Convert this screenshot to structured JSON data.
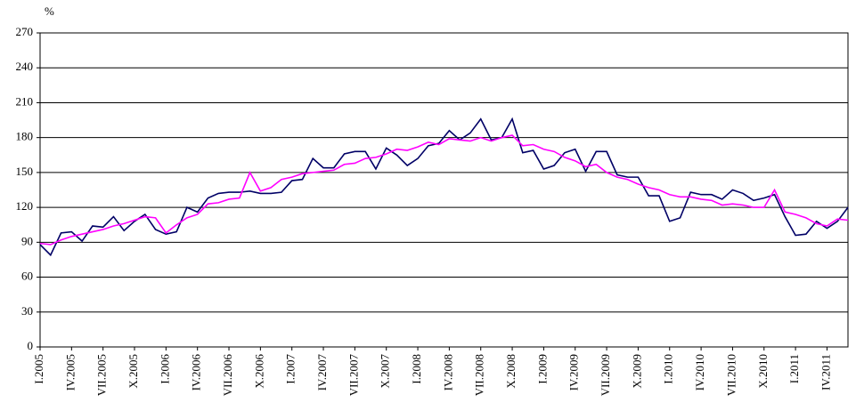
{
  "chart_data": {
    "type": "line",
    "ylabel": "%",
    "categories": [
      "I.2005",
      null,
      null,
      "IV.2005",
      null,
      null,
      "VII.2005",
      null,
      null,
      "X.2005",
      null,
      null,
      "I.2006",
      null,
      null,
      "IV.2006",
      null,
      null,
      "VII.2006",
      null,
      null,
      "X.2006",
      null,
      null,
      "I.2007",
      null,
      null,
      "IV.2007",
      null,
      null,
      "VII.2007",
      null,
      null,
      "X.2007",
      null,
      null,
      "I.2008",
      null,
      null,
      "IV.2008",
      null,
      null,
      "VII.2008",
      null,
      null,
      "X.2008",
      null,
      null,
      "I.2009",
      null,
      null,
      "IV.2009",
      null,
      null,
      "VII.2009",
      null,
      null,
      "X.2009",
      null,
      null,
      "I.2010",
      null,
      null,
      "IV.2010",
      null,
      null,
      "VII.2010",
      null,
      null,
      "X.2010",
      null,
      null,
      "I.2011",
      null,
      null,
      "IV.2011",
      null,
      null
    ],
    "series": [
      {
        "color": "#000066",
        "values": [
          88,
          79,
          98,
          99,
          91,
          104,
          103,
          112,
          100,
          108,
          114,
          101,
          97,
          99,
          120,
          116,
          128,
          132,
          133,
          133,
          134,
          132,
          132,
          133,
          143,
          144,
          162,
          154,
          154,
          166,
          168,
          168,
          153,
          171,
          165,
          156,
          162,
          173,
          175,
          186,
          178,
          184,
          196,
          178,
          180,
          196,
          167,
          169,
          153,
          156,
          167,
          170,
          151,
          168,
          168,
          148,
          146,
          146,
          130,
          130,
          108,
          111,
          133,
          131,
          131,
          127,
          135,
          132,
          126,
          128,
          131,
          112,
          96,
          97,
          108,
          102,
          108,
          120
        ]
      },
      {
        "color": "#ff00ff",
        "values": [
          89,
          88,
          92,
          95,
          97,
          99,
          101,
          104,
          106,
          109,
          112,
          111,
          98,
          105,
          111,
          114,
          123,
          124,
          127,
          128,
          150,
          134,
          137,
          144,
          146,
          149,
          150,
          151,
          152,
          157,
          158,
          162,
          163,
          166,
          170,
          169,
          172,
          176,
          174,
          179,
          178,
          177,
          180,
          177,
          180,
          182,
          173,
          174,
          170,
          168,
          163,
          160,
          155,
          157,
          150,
          146,
          144,
          140,
          137,
          135,
          131,
          129,
          129,
          127,
          126,
          122,
          123,
          122,
          120,
          120,
          135,
          116,
          114,
          111,
          106,
          104,
          110,
          109
        ]
      }
    ],
    "ylim": [
      0,
      270
    ],
    "yticks": [
      0,
      30,
      60,
      90,
      120,
      150,
      180,
      210,
      240,
      270
    ],
    "grid": true
  }
}
